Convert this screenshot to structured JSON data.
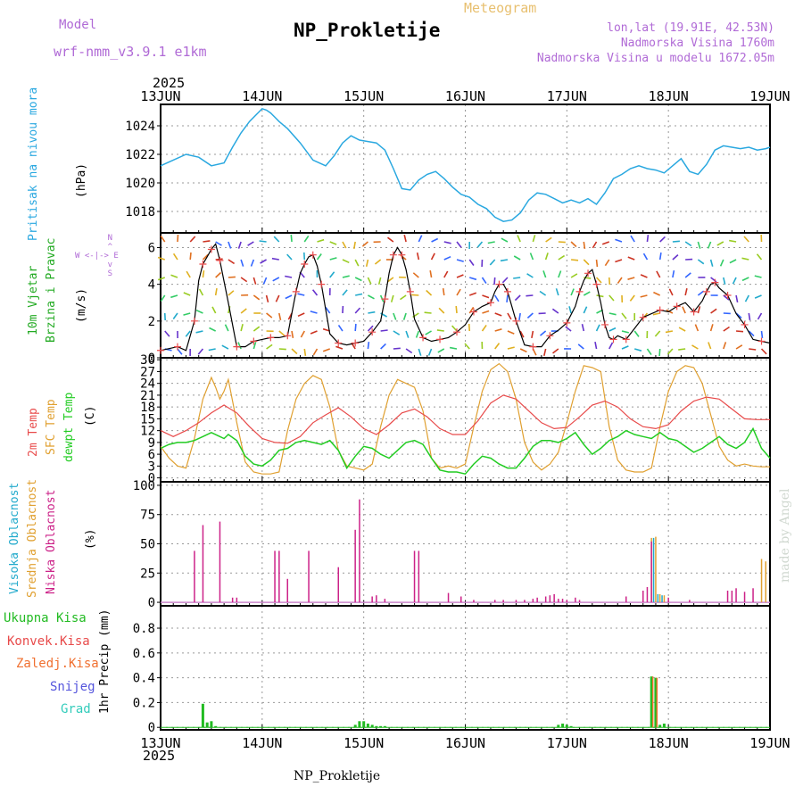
{
  "header": {
    "model_label": "Model",
    "model_name": "wrf-nmm_v3.9.1 e1km",
    "meteogram_label": "Meteogram",
    "station_title": "NP_Prokletije",
    "lonlat": "lon,lat (19.91E, 42.53N)",
    "altitude": "Nadmorska Visina 1760m",
    "model_altitude": "Nadmorska Visina u modelu 1672.05m",
    "year_top": "2025",
    "year_bottom": "2025",
    "footer_station": "NP_Prokletije",
    "credit": "made by Angel"
  },
  "colors": {
    "pressure": "#2aa8e0",
    "wind": "#22aa22",
    "temp2m": "#e84a4a",
    "sfc_temp": "#e0a030",
    "dewpoint": "#22cc22",
    "high_cloud": "#22aacc",
    "mid_cloud": "#e0a030",
    "low_cloud": "#cc2288",
    "total_precip": "#22bb22",
    "convective": "#e84a4a",
    "frozen": "#f07030",
    "snow": "#5555dd",
    "hail": "#33ccbb",
    "header_violet": "#b06ad6",
    "title_orange": "#e8c070"
  },
  "chart_data": [
    {
      "id": "pressure",
      "type": "line",
      "ylabel_lines": [
        "Pritisak na nivou mora",
        "(hPa)"
      ],
      "x_ticks": [
        "13JUN",
        "14JUN",
        "15JUN",
        "16JUN",
        "17JUN",
        "18JUN",
        "19JUN"
      ],
      "x_range_hours": [
        0,
        144
      ],
      "ylim": [
        1016.5,
        1025.5
      ],
      "yticks": [
        1018,
        1020,
        1022,
        1024
      ],
      "grid": true,
      "series": [
        {
          "x": [
            0,
            3,
            6,
            9,
            12,
            15,
            17,
            19,
            21,
            23,
            24,
            25,
            26,
            27,
            28,
            30,
            33,
            36,
            39,
            41,
            43,
            45,
            47,
            49,
            51,
            53,
            55,
            57,
            59,
            61,
            63,
            65,
            67,
            69,
            71,
            73,
            75,
            77,
            79,
            81,
            83,
            85,
            87,
            89,
            91,
            93,
            95,
            97,
            99,
            101,
            103,
            105,
            107,
            109,
            111,
            113,
            115,
            117,
            119,
            121,
            123,
            125,
            127,
            129,
            131,
            133,
            135,
            137,
            139,
            141,
            143,
            144
          ],
          "y": [
            1021.2,
            1021.6,
            1022.0,
            1021.8,
            1021.2,
            1021.4,
            1022.5,
            1023.5,
            1024.3,
            1024.9,
            1025.2,
            1025.1,
            1024.9,
            1024.6,
            1024.3,
            1023.8,
            1022.8,
            1021.6,
            1021.2,
            1021.9,
            1022.8,
            1023.3,
            1023.0,
            1022.9,
            1022.8,
            1022.3,
            1021.0,
            1019.6,
            1019.5,
            1020.2,
            1020.6,
            1020.8,
            1020.3,
            1019.7,
            1019.2,
            1019.0,
            1018.5,
            1018.2,
            1017.6,
            1017.3,
            1017.4,
            1017.9,
            1018.8,
            1019.3,
            1019.2,
            1018.9,
            1018.6,
            1018.8,
            1018.6,
            1018.9,
            1018.5,
            1019.3,
            1020.3,
            1020.6,
            1021.0,
            1021.2,
            1021.0,
            1020.9,
            1020.7,
            1021.2,
            1021.7,
            1020.8,
            1020.6,
            1021.3,
            1022.3,
            1022.6,
            1022.5,
            1022.4,
            1022.5,
            1022.3,
            1022.4,
            1022.5
          ]
        }
      ]
    },
    {
      "id": "wind",
      "type": "line",
      "ylabel_lines": [
        "10m Vjetar",
        "Brzina i Pravac",
        "(m/s)"
      ],
      "compass": {
        "north": "N",
        "south": "S",
        "west": "W",
        "east": "E"
      },
      "x_range_hours": [
        0,
        144
      ],
      "ylim": [
        0,
        6.8
      ],
      "yticks": [
        0,
        2,
        4,
        6
      ],
      "grid": true,
      "series": [
        {
          "name": "speed",
          "x": [
            0,
            2,
            4,
            6,
            8,
            9,
            10,
            11,
            12,
            13,
            14,
            16,
            18,
            20,
            22,
            24,
            26,
            28,
            30,
            31,
            32,
            33,
            34,
            35,
            36,
            37,
            38,
            40,
            42,
            44,
            46,
            48,
            50,
            52,
            53,
            54,
            55,
            56,
            57,
            58,
            59,
            60,
            62,
            64,
            66,
            68,
            70,
            72,
            74,
            76,
            78,
            79,
            80,
            81,
            82,
            83,
            84,
            86,
            88,
            90,
            92,
            94,
            96,
            98,
            99,
            100,
            101,
            102,
            103,
            104,
            105,
            106,
            107,
            108,
            110,
            112,
            114,
            116,
            118,
            120,
            122,
            124,
            126,
            128,
            129,
            130,
            131,
            132,
            134,
            136,
            138,
            140,
            142,
            144
          ],
          "y": [
            0.4,
            0.5,
            0.6,
            0.4,
            2.0,
            4.2,
            5.1,
            5.5,
            5.9,
            6.2,
            5.3,
            3.0,
            0.6,
            0.6,
            0.9,
            1.0,
            1.1,
            1.1,
            1.2,
            2.4,
            3.6,
            4.6,
            5.1,
            5.5,
            5.6,
            5.0,
            4.0,
            1.3,
            0.8,
            0.7,
            0.8,
            0.9,
            1.4,
            2.0,
            3.2,
            4.6,
            5.6,
            6.0,
            5.6,
            4.8,
            3.6,
            2.1,
            1.1,
            0.9,
            1.0,
            1.1,
            1.4,
            1.8,
            2.5,
            2.8,
            3.0,
            3.6,
            4.0,
            4.0,
            3.6,
            2.8,
            2.0,
            0.7,
            0.6,
            0.6,
            1.2,
            1.5,
            1.9,
            2.8,
            3.6,
            4.2,
            4.6,
            4.8,
            4.0,
            3.0,
            1.8,
            1.1,
            1.0,
            1.2,
            1.0,
            1.6,
            2.2,
            2.4,
            2.6,
            2.5,
            2.8,
            3.0,
            2.5,
            3.1,
            3.6,
            4.0,
            4.1,
            3.8,
            3.4,
            2.4,
            1.8,
            1.0,
            0.9,
            0.8
          ]
        }
      ]
    },
    {
      "id": "temperature",
      "type": "line",
      "ylabel_lines": [
        "2m Temp",
        "SFC Temp",
        "dewpt Temp",
        "(C)"
      ],
      "x_range_hours": [
        0,
        144
      ],
      "ylim": [
        -1,
        30.5
      ],
      "yticks": [
        0,
        3,
        6,
        9,
        12,
        15,
        18,
        21,
        24,
        27,
        30
      ],
      "grid": true,
      "series": [
        {
          "name": "2m Temp",
          "x": [
            0,
            3,
            6,
            9,
            12,
            15,
            18,
            21,
            24,
            27,
            30,
            33,
            36,
            39,
            42,
            45,
            48,
            51,
            54,
            57,
            60,
            63,
            66,
            69,
            72,
            75,
            78,
            81,
            84,
            87,
            90,
            93,
            96,
            99,
            102,
            105,
            108,
            111,
            114,
            117,
            120,
            123,
            126,
            129,
            132,
            135,
            138,
            141,
            144
          ],
          "y": [
            12.0,
            10.5,
            12.0,
            14.0,
            16.5,
            18.5,
            16.5,
            13.0,
            10.0,
            9.0,
            8.8,
            10.5,
            14.0,
            16.0,
            17.8,
            15.5,
            12.5,
            11.0,
            13.5,
            16.5,
            17.5,
            15.5,
            12.5,
            11.0,
            11.0,
            14.5,
            19.0,
            21.0,
            20.0,
            17.0,
            14.0,
            12.5,
            12.8,
            15.5,
            18.5,
            19.5,
            18.0,
            15.0,
            13.0,
            12.5,
            13.5,
            17.0,
            19.5,
            20.5,
            20.0,
            17.5,
            15.0,
            14.8,
            14.8
          ]
        },
        {
          "name": "SFC Temp",
          "x": [
            0,
            2,
            4,
            6,
            8,
            10,
            12,
            13,
            14,
            15,
            16,
            18,
            20,
            22,
            24,
            26,
            28,
            30,
            32,
            34,
            36,
            38,
            40,
            42,
            44,
            46,
            48,
            50,
            52,
            54,
            56,
            58,
            60,
            62,
            64,
            66,
            68,
            70,
            72,
            74,
            76,
            78,
            80,
            82,
            84,
            86,
            88,
            90,
            92,
            94,
            96,
            98,
            100,
            102,
            104,
            106,
            108,
            110,
            112,
            114,
            116,
            118,
            120,
            122,
            124,
            126,
            128,
            130,
            132,
            134,
            136,
            138,
            140,
            142,
            144
          ],
          "y": [
            8.0,
            5.0,
            3.0,
            2.5,
            10.0,
            20.0,
            25.5,
            23.0,
            20.0,
            22.0,
            25.0,
            14.0,
            4.0,
            1.5,
            1.0,
            1.0,
            1.5,
            12.0,
            20.0,
            24.0,
            26.0,
            25.0,
            18.0,
            7.0,
            3.0,
            2.5,
            2.0,
            3.5,
            13.0,
            21.0,
            25.0,
            24.0,
            23.0,
            17.0,
            5.0,
            2.5,
            3.0,
            2.5,
            3.5,
            13.0,
            22.0,
            27.5,
            29.0,
            27.0,
            20.0,
            9.0,
            4.0,
            2.0,
            3.5,
            6.5,
            14.0,
            22.0,
            28.5,
            28.0,
            27.0,
            13.0,
            4.5,
            2.0,
            1.5,
            1.5,
            2.5,
            13.0,
            22.0,
            27.0,
            28.5,
            28.0,
            24.0,
            16.0,
            8.0,
            4.5,
            3.0,
            3.5,
            3.0,
            2.8,
            2.8
          ]
        },
        {
          "name": "dewpt Temp",
          "x": [
            0,
            2,
            4,
            6,
            8,
            10,
            12,
            14,
            15,
            16,
            18,
            20,
            22,
            24,
            26,
            28,
            30,
            32,
            34,
            36,
            38,
            40,
            42,
            44,
            46,
            48,
            50,
            52,
            54,
            56,
            58,
            60,
            62,
            64,
            66,
            68,
            70,
            72,
            74,
            76,
            78,
            80,
            82,
            84,
            86,
            88,
            90,
            92,
            94,
            96,
            98,
            100,
            102,
            104,
            106,
            108,
            110,
            112,
            114,
            116,
            118,
            120,
            122,
            124,
            126,
            128,
            130,
            132,
            134,
            136,
            138,
            140,
            142,
            144
          ],
          "y": [
            7.5,
            8.5,
            9.0,
            9.0,
            9.5,
            10.5,
            11.5,
            10.5,
            10.0,
            11.0,
            9.5,
            5.5,
            3.5,
            3.0,
            4.5,
            7.0,
            7.5,
            9.0,
            9.5,
            9.0,
            8.5,
            9.5,
            7.0,
            2.5,
            5.5,
            8.0,
            7.5,
            6.0,
            5.0,
            7.0,
            9.0,
            9.5,
            8.5,
            5.0,
            2.0,
            1.5,
            1.5,
            1.0,
            3.5,
            5.5,
            5.0,
            3.5,
            2.5,
            2.5,
            5.0,
            8.0,
            9.5,
            9.5,
            9.0,
            10.0,
            11.5,
            8.5,
            6.0,
            7.5,
            9.5,
            10.5,
            12.0,
            11.0,
            10.5,
            10.0,
            11.5,
            10.0,
            9.5,
            8.0,
            6.5,
            7.5,
            9.0,
            10.5,
            8.5,
            7.5,
            9.0,
            12.5,
            7.5,
            5.0
          ]
        }
      ]
    },
    {
      "id": "clouds",
      "type": "bar",
      "ylabel_lines": [
        "Visoka Oblacnost",
        "Srednja Oblacnost",
        "Niska Oblacnost",
        "(%)"
      ],
      "x_range_hours": [
        0,
        144
      ],
      "ylim": [
        -3,
        103
      ],
      "yticks": [
        0,
        25,
        50,
        75,
        100
      ],
      "grid": true,
      "series": [
        {
          "name": "Niska Oblacnost",
          "x": [
            8,
            10,
            14,
            17,
            18,
            27,
            28,
            30,
            35,
            42,
            46,
            47,
            50,
            51,
            53,
            60,
            61,
            68,
            71,
            74,
            79,
            81,
            84,
            86,
            88,
            89,
            91,
            92,
            93,
            94,
            95,
            96,
            98,
            99,
            110,
            114,
            115,
            116,
            120,
            125,
            134,
            135,
            136,
            138,
            140
          ],
          "y": [
            44,
            66,
            69,
            4,
            4,
            44,
            44,
            20,
            44,
            30,
            62,
            88,
            5,
            6,
            3,
            44,
            44,
            8,
            5,
            2,
            2,
            2,
            2,
            2,
            3,
            4,
            5,
            6,
            7,
            3,
            3,
            2,
            4,
            2,
            5,
            10,
            13,
            52,
            4,
            2,
            10,
            10,
            12,
            9,
            12
          ]
        },
        {
          "name": "Srednja Oblacnost",
          "x": [
            116,
            117,
            118,
            119,
            142,
            143
          ],
          "y": [
            55,
            56,
            7,
            6,
            37,
            35
          ]
        },
        {
          "name": "Visoka Oblacnost",
          "x": [
            116.5,
            117.5,
            118.5
          ],
          "y": [
            55,
            7,
            6
          ]
        }
      ]
    },
    {
      "id": "precip",
      "type": "bar",
      "ylabel_lines": [
        "Ukupna Kisa",
        "Konvek.Kisa",
        "Zaledj.Kisa",
        "Snijeg",
        "Grad",
        "1hr Precip (mm)"
      ],
      "x_ticks": [
        "13JUN",
        "14JUN",
        "15JUN",
        "16JUN",
        "17JUN",
        "18JUN",
        "19JUN"
      ],
      "x_range_hours": [
        0,
        144
      ],
      "ylim": [
        -0.02,
        0.98
      ],
      "yticks": [
        0,
        0.2,
        0.4,
        0.6,
        0.8
      ],
      "grid": true,
      "series": [
        {
          "name": "Ukupna Kisa",
          "x": [
            10,
            11,
            12,
            13,
            46,
            47,
            48,
            49,
            50,
            51,
            52,
            53,
            94,
            95,
            96,
            97,
            116,
            117,
            118,
            119
          ],
          "y": [
            0.19,
            0.04,
            0.05,
            0.01,
            0.02,
            0.05,
            0.05,
            0.03,
            0.02,
            0.01,
            0.01,
            0.01,
            0.02,
            0.03,
            0.02,
            0.01,
            0.41,
            0.4,
            0.02,
            0.03
          ]
        },
        {
          "name": "Zaledj.Kisa",
          "x": [
            116.3,
            117.3
          ],
          "y": [
            0.41,
            0.4
          ]
        }
      ]
    }
  ]
}
